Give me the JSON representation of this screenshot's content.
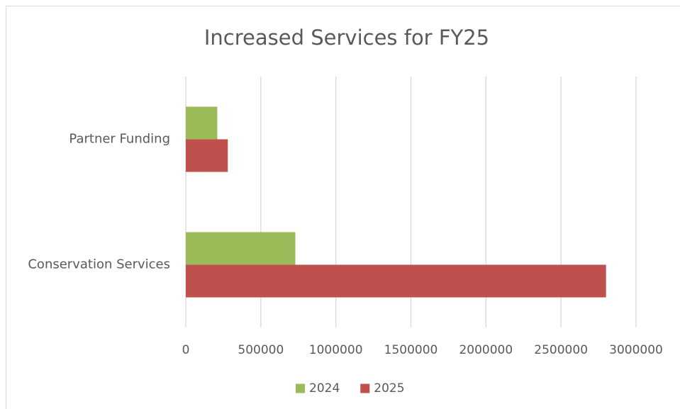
{
  "chart_data": {
    "type": "bar",
    "orientation": "horizontal",
    "title": "Increased Services for FY25",
    "categories": [
      "Conservation Services",
      "Partner Funding"
    ],
    "series": [
      {
        "name": "2024",
        "color": "#9bbb59",
        "values": [
          730000,
          210000
        ]
      },
      {
        "name": "2025",
        "color": "#c0504d",
        "values": [
          2800000,
          280000
        ]
      }
    ],
    "xlim": [
      0,
      3000000
    ],
    "xticks": [
      0,
      500000,
      1000000,
      1500000,
      2000000,
      2500000,
      3000000
    ],
    "grid": true,
    "legend": "bottom"
  }
}
